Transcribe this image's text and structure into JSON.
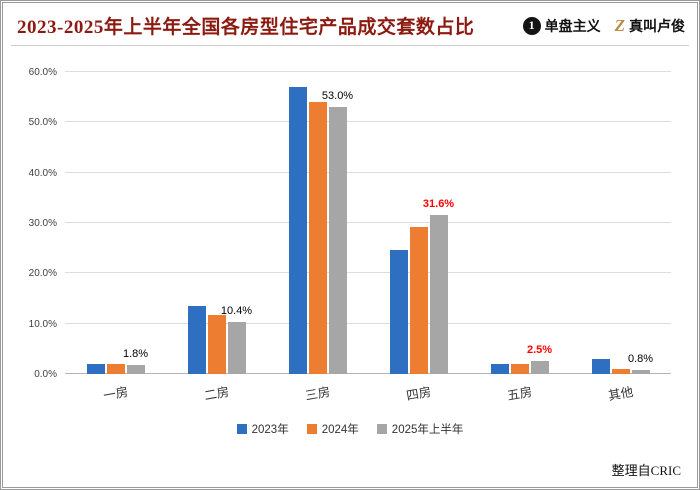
{
  "header": {
    "title": "2023-2025年上半年全国各房型住宅产品成交套数占比",
    "brand1": {
      "icon_glyph": "1",
      "icon_name": "circle-one-icon",
      "label": "单盘主义"
    },
    "brand2": {
      "icon_glyph": "Z",
      "icon_name": "z-logo-icon",
      "label": "真叫卢俊"
    }
  },
  "chart_data": {
    "type": "bar",
    "title": "2023-2025年上半年全国各房型住宅产品成交套数占比",
    "categories": [
      "一房",
      "二房",
      "三房",
      "四房",
      "五房",
      "其他"
    ],
    "series": [
      {
        "name": "2023年",
        "color": "#2e6fc1",
        "values": [
          2.0,
          13.6,
          57.0,
          24.6,
          2.0,
          3.0
        ]
      },
      {
        "name": "2024年",
        "color": "#ed7d31",
        "values": [
          2.0,
          11.8,
          54.0,
          29.3,
          2.0,
          1.0
        ]
      },
      {
        "name": "2025年上半年",
        "color": "#a6a6a6",
        "values": [
          1.8,
          10.4,
          53.0,
          31.6,
          2.5,
          0.8
        ]
      }
    ],
    "annotations": [
      {
        "text": "1.8%",
        "color": "#000000",
        "emphasis": false
      },
      {
        "text": "10.4%",
        "color": "#000000",
        "emphasis": false
      },
      {
        "text": "53.0%",
        "color": "#000000",
        "emphasis": false
      },
      {
        "text": "31.6%",
        "color": "#ff0000",
        "emphasis": true
      },
      {
        "text": "2.5%",
        "color": "#ff0000",
        "emphasis": true
      },
      {
        "text": "0.8%",
        "color": "#000000",
        "emphasis": false
      }
    ],
    "ylim": [
      0,
      60
    ],
    "yticks": [
      "0.0%",
      "10.0%",
      "20.0%",
      "30.0%",
      "40.0%",
      "50.0%",
      "60.0%"
    ],
    "grid": true,
    "legend_position": "bottom",
    "xlabel": "",
    "ylabel": ""
  },
  "footer": {
    "source": "整理自CRIC"
  }
}
